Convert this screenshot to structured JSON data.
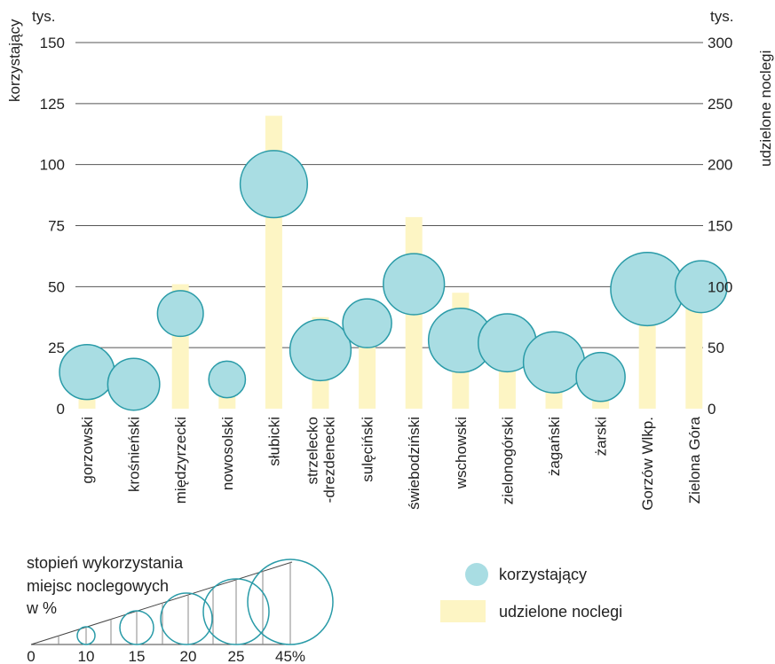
{
  "chart_data": {
    "type": "bar+bubble",
    "left_axis": {
      "unit": "tys.",
      "label": "korzystający",
      "ticks": [
        0,
        25,
        50,
        75,
        100,
        125,
        150
      ],
      "range": [
        0,
        150
      ]
    },
    "right_axis": {
      "unit": "tys.",
      "label": "udzielone noclegi",
      "ticks": [
        0,
        50,
        100,
        150,
        200,
        250,
        300
      ],
      "range": [
        0,
        300
      ]
    },
    "categories": [
      [
        "gorzowski"
      ],
      [
        "krośnieński"
      ],
      [
        "międzyrzecki"
      ],
      [
        "nowosolski"
      ],
      [
        "słubicki"
      ],
      [
        "strzelecko",
        "-drezdenecki"
      ],
      [
        "sulęciński"
      ],
      [
        "świebodziński"
      ],
      [
        "wschowski"
      ],
      [
        "zielonogórski"
      ],
      [
        "żagański"
      ],
      [
        "żarski"
      ],
      [
        "Gorzów Wlkp."
      ],
      [
        "Zielona Góra"
      ]
    ],
    "series": [
      {
        "name": "korzystający",
        "axis": "left",
        "values": [
          15,
          10,
          39,
          12,
          92,
          24,
          35,
          51,
          28,
          27,
          19,
          13,
          49,
          50
        ]
      },
      {
        "name": "udzielone noclegi",
        "axis": "right",
        "values": [
          40,
          35,
          102,
          25,
          240,
          75,
          79,
          157,
          95,
          56,
          27,
          27,
          95,
          100
        ]
      }
    ],
    "occupancy_percent": [
      18,
      17,
      15,
      12,
      22,
      20,
      16,
      20,
      21,
      19,
      20,
      16,
      24,
      17
    ]
  },
  "legend": {
    "bubble_label": "korzystający",
    "bar_label": "udzielone noclegi",
    "size_title": [
      "stopień wykorzystania",
      "miejsc noclegowych",
      "w %"
    ],
    "size_ticks": [
      "0",
      "10",
      "15",
      "20",
      "25",
      "45%"
    ],
    "size_values": [
      10,
      15,
      20,
      25,
      45
    ]
  },
  "colors": {
    "bubble_fill": "#a9dde3",
    "bubble_stroke": "#2a9ba8",
    "bar_fill": "#fdf5c4",
    "grid": "#555555"
  }
}
